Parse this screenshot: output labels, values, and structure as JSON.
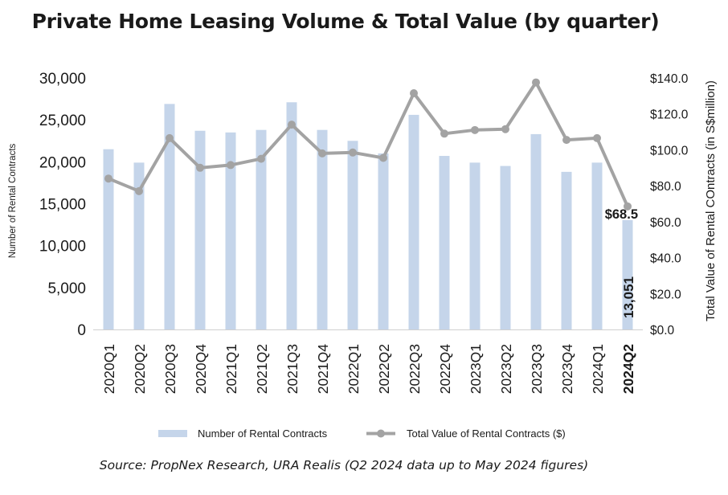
{
  "title": "Private Home Leasing Volume & Total Value (by quarter)",
  "source": "Source: PropNex Research, URA Realis (Q2 2024 data up to May 2024 figures)",
  "colors": {
    "bar": "#c5d5ea",
    "line": "#a3a3a3",
    "text": "#1a1a1a",
    "axis": "#d0d0d0"
  },
  "chart_data": {
    "type": "bar+line",
    "categories": [
      "2020Q1",
      "2020Q2",
      "2020Q3",
      "2020Q4",
      "2021Q1",
      "2021Q2",
      "2021Q3",
      "2021Q4",
      "2022Q1",
      "2022Q2",
      "2022Q3",
      "2022Q4",
      "2023Q1",
      "2023Q2",
      "2023Q3",
      "2023Q4",
      "2024Q1",
      "2024Q2"
    ],
    "series": [
      {
        "name": "Number of Rental Contracts",
        "type": "bar",
        "axis": "left",
        "values": [
          21500,
          19900,
          26900,
          23700,
          23500,
          23800,
          27100,
          23800,
          22500,
          21000,
          25600,
          20700,
          19900,
          19500,
          23300,
          18800,
          19900,
          13051
        ],
        "data_labels": [
          {
            "index": 17,
            "text": "13,051"
          }
        ]
      },
      {
        "name": "Total Value of Rental Contracts ($)",
        "type": "line",
        "axis": "right",
        "values": [
          84.0,
          77.0,
          106.5,
          90.0,
          91.5,
          95.0,
          114.0,
          98.0,
          98.5,
          95.5,
          131.5,
          109.0,
          111.0,
          111.5,
          137.5,
          105.5,
          106.5,
          68.5
        ],
        "data_labels": [
          {
            "index": 17,
            "text": "$68.5"
          }
        ]
      }
    ],
    "ylabel": "Number of Rental Contracts",
    "ylim": [
      0,
      30000
    ],
    "yticks": [
      0,
      5000,
      10000,
      15000,
      20000,
      25000,
      30000
    ],
    "ytick_labels": [
      "0",
      "5,000",
      "10,000",
      "15,000",
      "20,000",
      "25,000",
      "30,000"
    ],
    "y2label": "Total Value of Rental COntracts (in S$million)",
    "y2lim": [
      0,
      140
    ],
    "y2ticks": [
      0,
      20,
      40,
      60,
      80,
      100,
      120,
      140
    ],
    "y2tick_labels": [
      "$0.0",
      "$20.0",
      "$40.0",
      "$60.0",
      "$80.0",
      "$100.0",
      "$120.0",
      "$140.0"
    ],
    "bold_categories": [
      "2024Q2"
    ],
    "legend": "bottom"
  }
}
